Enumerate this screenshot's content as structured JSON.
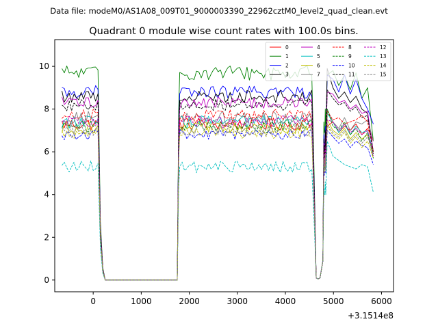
{
  "figure": {
    "suptitle": "Data file: modeM0/AS1A08_009T01_9000003390_22962cztM0_level2_quad_clean.evt"
  },
  "chart_data": {
    "type": "line",
    "title": "Quadrant 0 module wise count rates with 100.0s bins.",
    "xlabel": "",
    "ylabel": "",
    "x_offset_label": "+3.1514e8",
    "xlim": [
      -800,
      6250
    ],
    "ylim": [
      -0.55,
      11.25
    ],
    "xticks": [
      0,
      1000,
      2000,
      3000,
      4000,
      5000,
      6000
    ],
    "xtick_labels": [
      "0",
      "1000",
      "2000",
      "3000",
      "4000",
      "5000",
      "6000"
    ],
    "yticks": [
      0,
      2,
      4,
      6,
      8,
      10
    ],
    "ytick_labels": [
      "0",
      "2",
      "4",
      "6",
      "8",
      "10"
    ],
    "legend_position": "top-right",
    "legend_columns": 4,
    "series": [
      {
        "name": "0",
        "color": "#ff0000",
        "dash": "solid",
        "base": 7.3,
        "amp": 0.3,
        "osc": [
          6.0,
          5.4,
          5.5,
          6.3,
          5.5
        ],
        "post": [
          7.2,
          7.4,
          6.9,
          7.2,
          7.0,
          7.3,
          6.8,
          7.1,
          6.5
        ]
      },
      {
        "name": "1",
        "color": "#008000",
        "dash": "solid",
        "base": 9.7,
        "amp": 0.35,
        "osc": [
          7.4,
          6.9,
          7.0,
          8.0,
          7.0
        ],
        "post": [
          9.6,
          9.8,
          9.1,
          9.6,
          8.9,
          9.7,
          8.5,
          9.0,
          6.5
        ]
      },
      {
        "name": "2",
        "color": "#0000ff",
        "dash": "solid",
        "base": 8.8,
        "amp": 0.3,
        "osc": [
          6.8,
          6.2,
          6.3,
          7.2,
          6.3
        ],
        "post": [
          9.6,
          9.4,
          8.8,
          9.6,
          8.7,
          9.4,
          8.5,
          8.0,
          7.3
        ]
      },
      {
        "name": "3",
        "color": "#000000",
        "dash": "solid",
        "base": 8.6,
        "amp": 0.3,
        "osc": [
          6.6,
          6.0,
          6.1,
          7.0,
          6.1
        ],
        "post": [
          9.9,
          9.0,
          8.5,
          8.8,
          8.3,
          8.6,
          8.0,
          7.8,
          6.0
        ]
      },
      {
        "name": "4",
        "color": "#bf00bf",
        "dash": "solid",
        "base": 8.3,
        "amp": 0.28,
        "osc": [
          6.4,
          5.8,
          5.9,
          6.7,
          5.9
        ],
        "post": [
          8.8,
          8.7,
          8.3,
          8.4,
          8.0,
          8.2,
          7.8,
          7.9,
          6.0
        ]
      },
      {
        "name": "5",
        "color": "#00bfbf",
        "dash": "solid",
        "base": 7.4,
        "amp": 0.3,
        "osc": [
          5.9,
          5.3,
          5.4,
          6.2,
          5.4
        ],
        "post": [
          7.8,
          7.4,
          6.9,
          7.3,
          6.8,
          7.2,
          6.9,
          7.0,
          6.0
        ]
      },
      {
        "name": "6",
        "color": "#bfbf00",
        "dash": "solid",
        "base": 7.1,
        "amp": 0.28,
        "osc": [
          5.7,
          5.1,
          5.2,
          6.0,
          5.2
        ],
        "post": [
          7.5,
          7.0,
          6.8,
          7.1,
          6.6,
          6.9,
          6.6,
          6.8,
          6.0
        ]
      },
      {
        "name": "7",
        "color": "#808080",
        "dash": "solid",
        "base": 7.6,
        "amp": 0.3,
        "osc": [
          5.9,
          5.3,
          5.4,
          6.2,
          5.4
        ],
        "post": [
          8.0,
          7.4,
          7.1,
          7.6,
          7.0,
          7.4,
          7.3,
          7.5,
          6.5
        ]
      },
      {
        "name": "8",
        "color": "#ff0000",
        "dash": "dashed",
        "base": 7.7,
        "amp": 0.3,
        "osc": [
          6.0,
          5.4,
          5.5,
          6.3,
          5.5
        ],
        "post": [
          7.9,
          7.5,
          7.6,
          7.3,
          7.4,
          7.5,
          7.7,
          7.4,
          6.0
        ]
      },
      {
        "name": "9",
        "color": "#008000",
        "dash": "dashed",
        "base": 7.2,
        "amp": 0.3,
        "osc": [
          5.8,
          5.2,
          5.3,
          6.1,
          5.3
        ],
        "post": [
          8.0,
          7.2,
          7.0,
          7.4,
          6.8,
          7.1,
          6.5,
          6.9,
          5.7
        ]
      },
      {
        "name": "10",
        "color": "#0000ff",
        "dash": "dashed",
        "base": 6.8,
        "amp": 0.25,
        "osc": [
          5.4,
          4.9,
          5.0,
          5.7,
          5.0
        ],
        "post": [
          7.0,
          6.7,
          6.4,
          6.6,
          6.2,
          6.5,
          6.3,
          6.2,
          5.4
        ]
      },
      {
        "name": "11",
        "color": "#000000",
        "dash": "dashed",
        "base": 8.2,
        "amp": 0.28,
        "osc": [
          6.3,
          5.7,
          5.8,
          6.7,
          5.8
        ],
        "post": [
          8.9,
          8.5,
          8.2,
          8.3,
          7.9,
          8.1,
          7.6,
          7.7,
          5.9
        ]
      },
      {
        "name": "12",
        "color": "#bf00bf",
        "dash": "dashed",
        "base": 7.4,
        "amp": 0.3,
        "osc": [
          5.9,
          5.3,
          5.4,
          6.2,
          5.4
        ],
        "post": [
          7.5,
          7.4,
          7.0,
          7.3,
          6.9,
          7.1,
          6.8,
          7.0,
          5.8
        ]
      },
      {
        "name": "13",
        "color": "#00bfbf",
        "dash": "dashed",
        "base": 5.3,
        "amp": 0.28,
        "osc": [
          4.4,
          4.0,
          4.0,
          4.6,
          4.0
        ],
        "post": [
          6.5,
          5.8,
          5.6,
          5.4,
          5.3,
          5.2,
          5.4,
          5.3,
          4.1
        ]
      },
      {
        "name": "14",
        "color": "#bfbf00",
        "dash": "dashed",
        "base": 6.9,
        "amp": 0.28,
        "osc": [
          5.6,
          5.0,
          5.1,
          5.9,
          5.1
        ],
        "post": [
          7.2,
          6.8,
          6.6,
          6.9,
          6.4,
          6.7,
          6.2,
          6.5,
          5.7
        ]
      },
      {
        "name": "15",
        "color": "#808080",
        "dash": "dashed",
        "base": 7.0,
        "amp": 0.28,
        "osc": [
          5.6,
          5.0,
          5.1,
          5.9,
          5.1
        ],
        "post": [
          7.3,
          6.9,
          6.7,
          7.0,
          6.5,
          6.8,
          6.4,
          6.7,
          5.9
        ]
      }
    ]
  }
}
